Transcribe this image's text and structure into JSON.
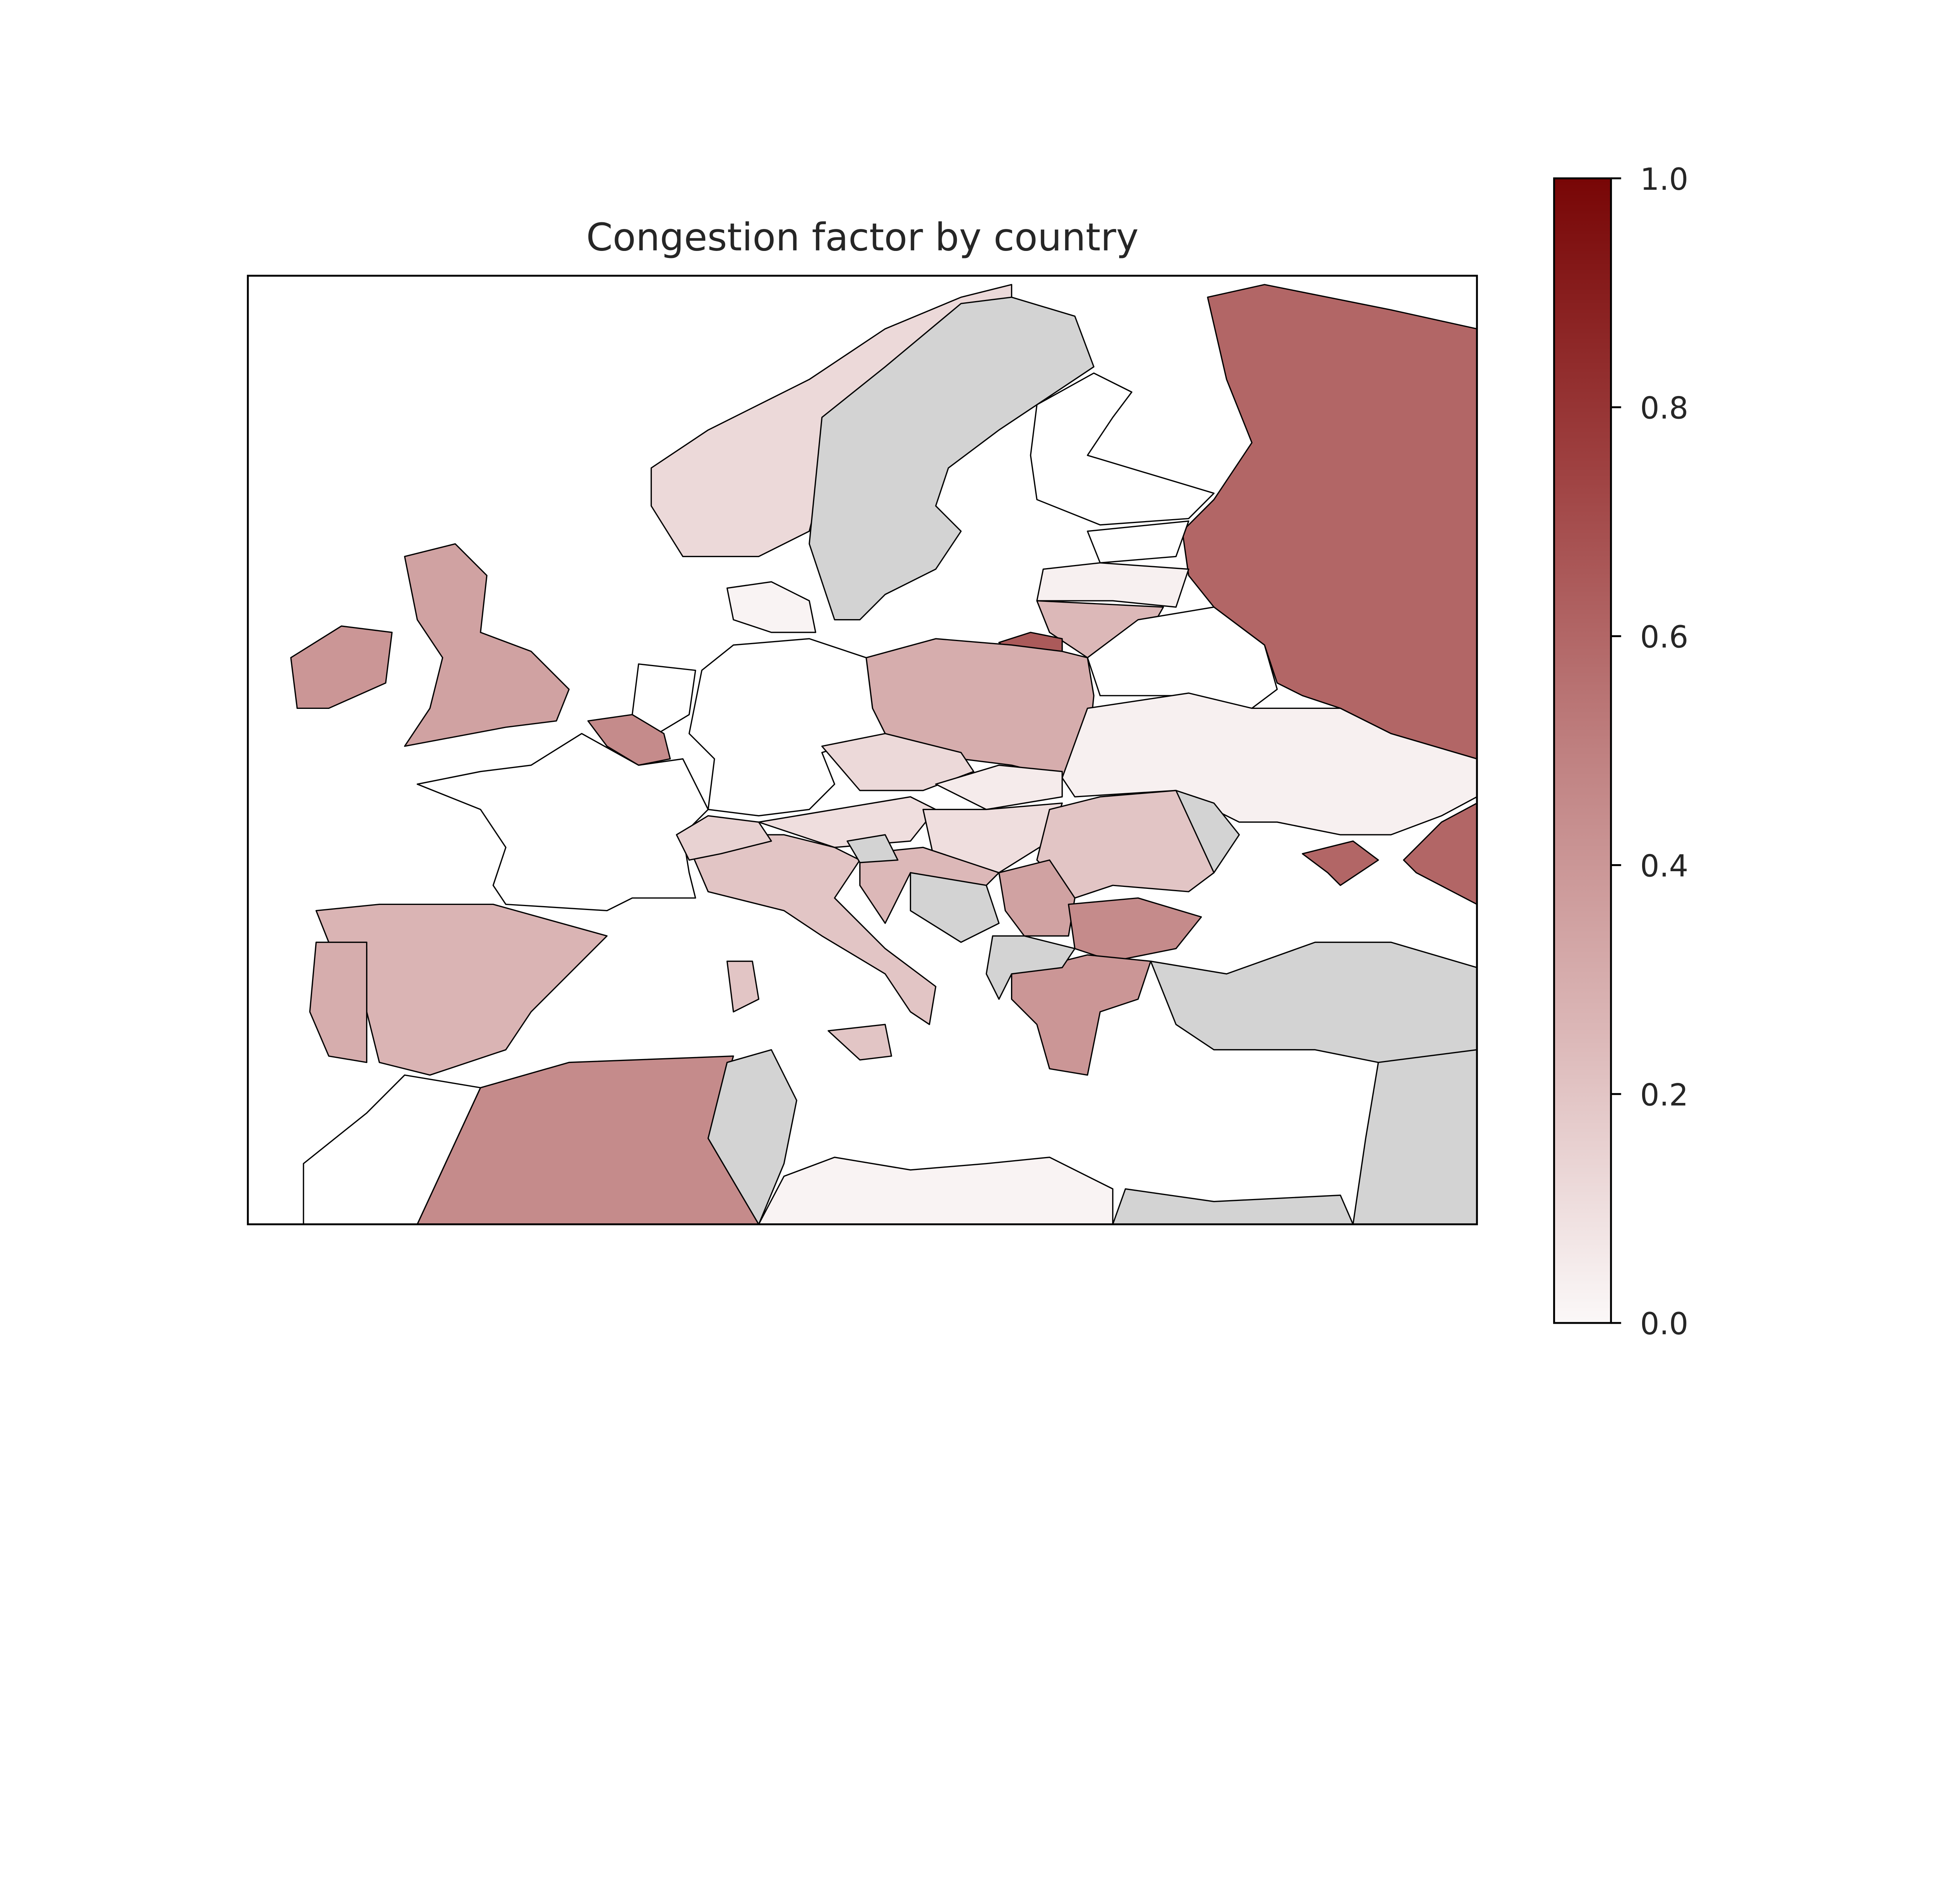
{
  "chart_data": {
    "type": "choropleth",
    "title": "Congestion factor by country",
    "colorbar": {
      "range": [
        0.0,
        1.0
      ],
      "ticks": [
        "0.0",
        "0.2",
        "0.4",
        "0.6",
        "0.8",
        "1.0"
      ],
      "colors": [
        "#fbf8f8",
        "#dcb8b8",
        "#bf8080",
        "#9e4040",
        "#780606"
      ]
    },
    "missing_color": "#d3d3d3",
    "regions": [
      {
        "id": "norway",
        "value": 0.12
      },
      {
        "id": "sweden",
        "value": null
      },
      {
        "id": "finland",
        "value": 0.0
      },
      {
        "id": "russia",
        "value": 0.6
      },
      {
        "id": "russia-south",
        "value": 0.6
      },
      {
        "id": "crimea",
        "value": 0.6
      },
      {
        "id": "estonia",
        "value": 0.0
      },
      {
        "id": "latvia",
        "value": 0.03
      },
      {
        "id": "lithuania",
        "value": 0.25
      },
      {
        "id": "kaliningrad",
        "value": 0.65
      },
      {
        "id": "belarus",
        "value": 0.0
      },
      {
        "id": "poland",
        "value": 0.3
      },
      {
        "id": "ukraine",
        "value": 0.03
      },
      {
        "id": "germany",
        "value": 0.0
      },
      {
        "id": "netherlands",
        "value": 0.0
      },
      {
        "id": "belgium",
        "value": 0.45
      },
      {
        "id": "france",
        "value": 0.0
      },
      {
        "id": "spain",
        "value": 0.27
      },
      {
        "id": "portugal",
        "value": 0.3
      },
      {
        "id": "uk",
        "value": 0.35
      },
      {
        "id": "ireland",
        "value": 0.4
      },
      {
        "id": "italy",
        "value": 0.2
      },
      {
        "id": "sicily",
        "value": 0.2
      },
      {
        "id": "sardinia",
        "value": 0.2
      },
      {
        "id": "switzerland",
        "value": 0.15
      },
      {
        "id": "austria",
        "value": 0.1
      },
      {
        "id": "czechia",
        "value": 0.12
      },
      {
        "id": "slovakia",
        "value": 0.05
      },
      {
        "id": "hungary",
        "value": 0.1
      },
      {
        "id": "romania",
        "value": 0.2
      },
      {
        "id": "moldova",
        "value": null
      },
      {
        "id": "serbia",
        "value": 0.35
      },
      {
        "id": "croatia",
        "value": 0.25
      },
      {
        "id": "bosnia",
        "value": null
      },
      {
        "id": "slovenia",
        "value": null
      },
      {
        "id": "bulgaria",
        "value": 0.45
      },
      {
        "id": "greece",
        "value": 0.4
      },
      {
        "id": "west-balkans",
        "value": null
      },
      {
        "id": "turkey",
        "value": null
      },
      {
        "id": "morocco",
        "value": 0.0
      },
      {
        "id": "algeria",
        "value": 0.45
      },
      {
        "id": "tunisia",
        "value": null
      },
      {
        "id": "libya",
        "value": 0.02
      },
      {
        "id": "egypt",
        "value": null
      },
      {
        "id": "middle-east",
        "value": null
      },
      {
        "id": "denmark",
        "value": 0.02
      }
    ]
  }
}
